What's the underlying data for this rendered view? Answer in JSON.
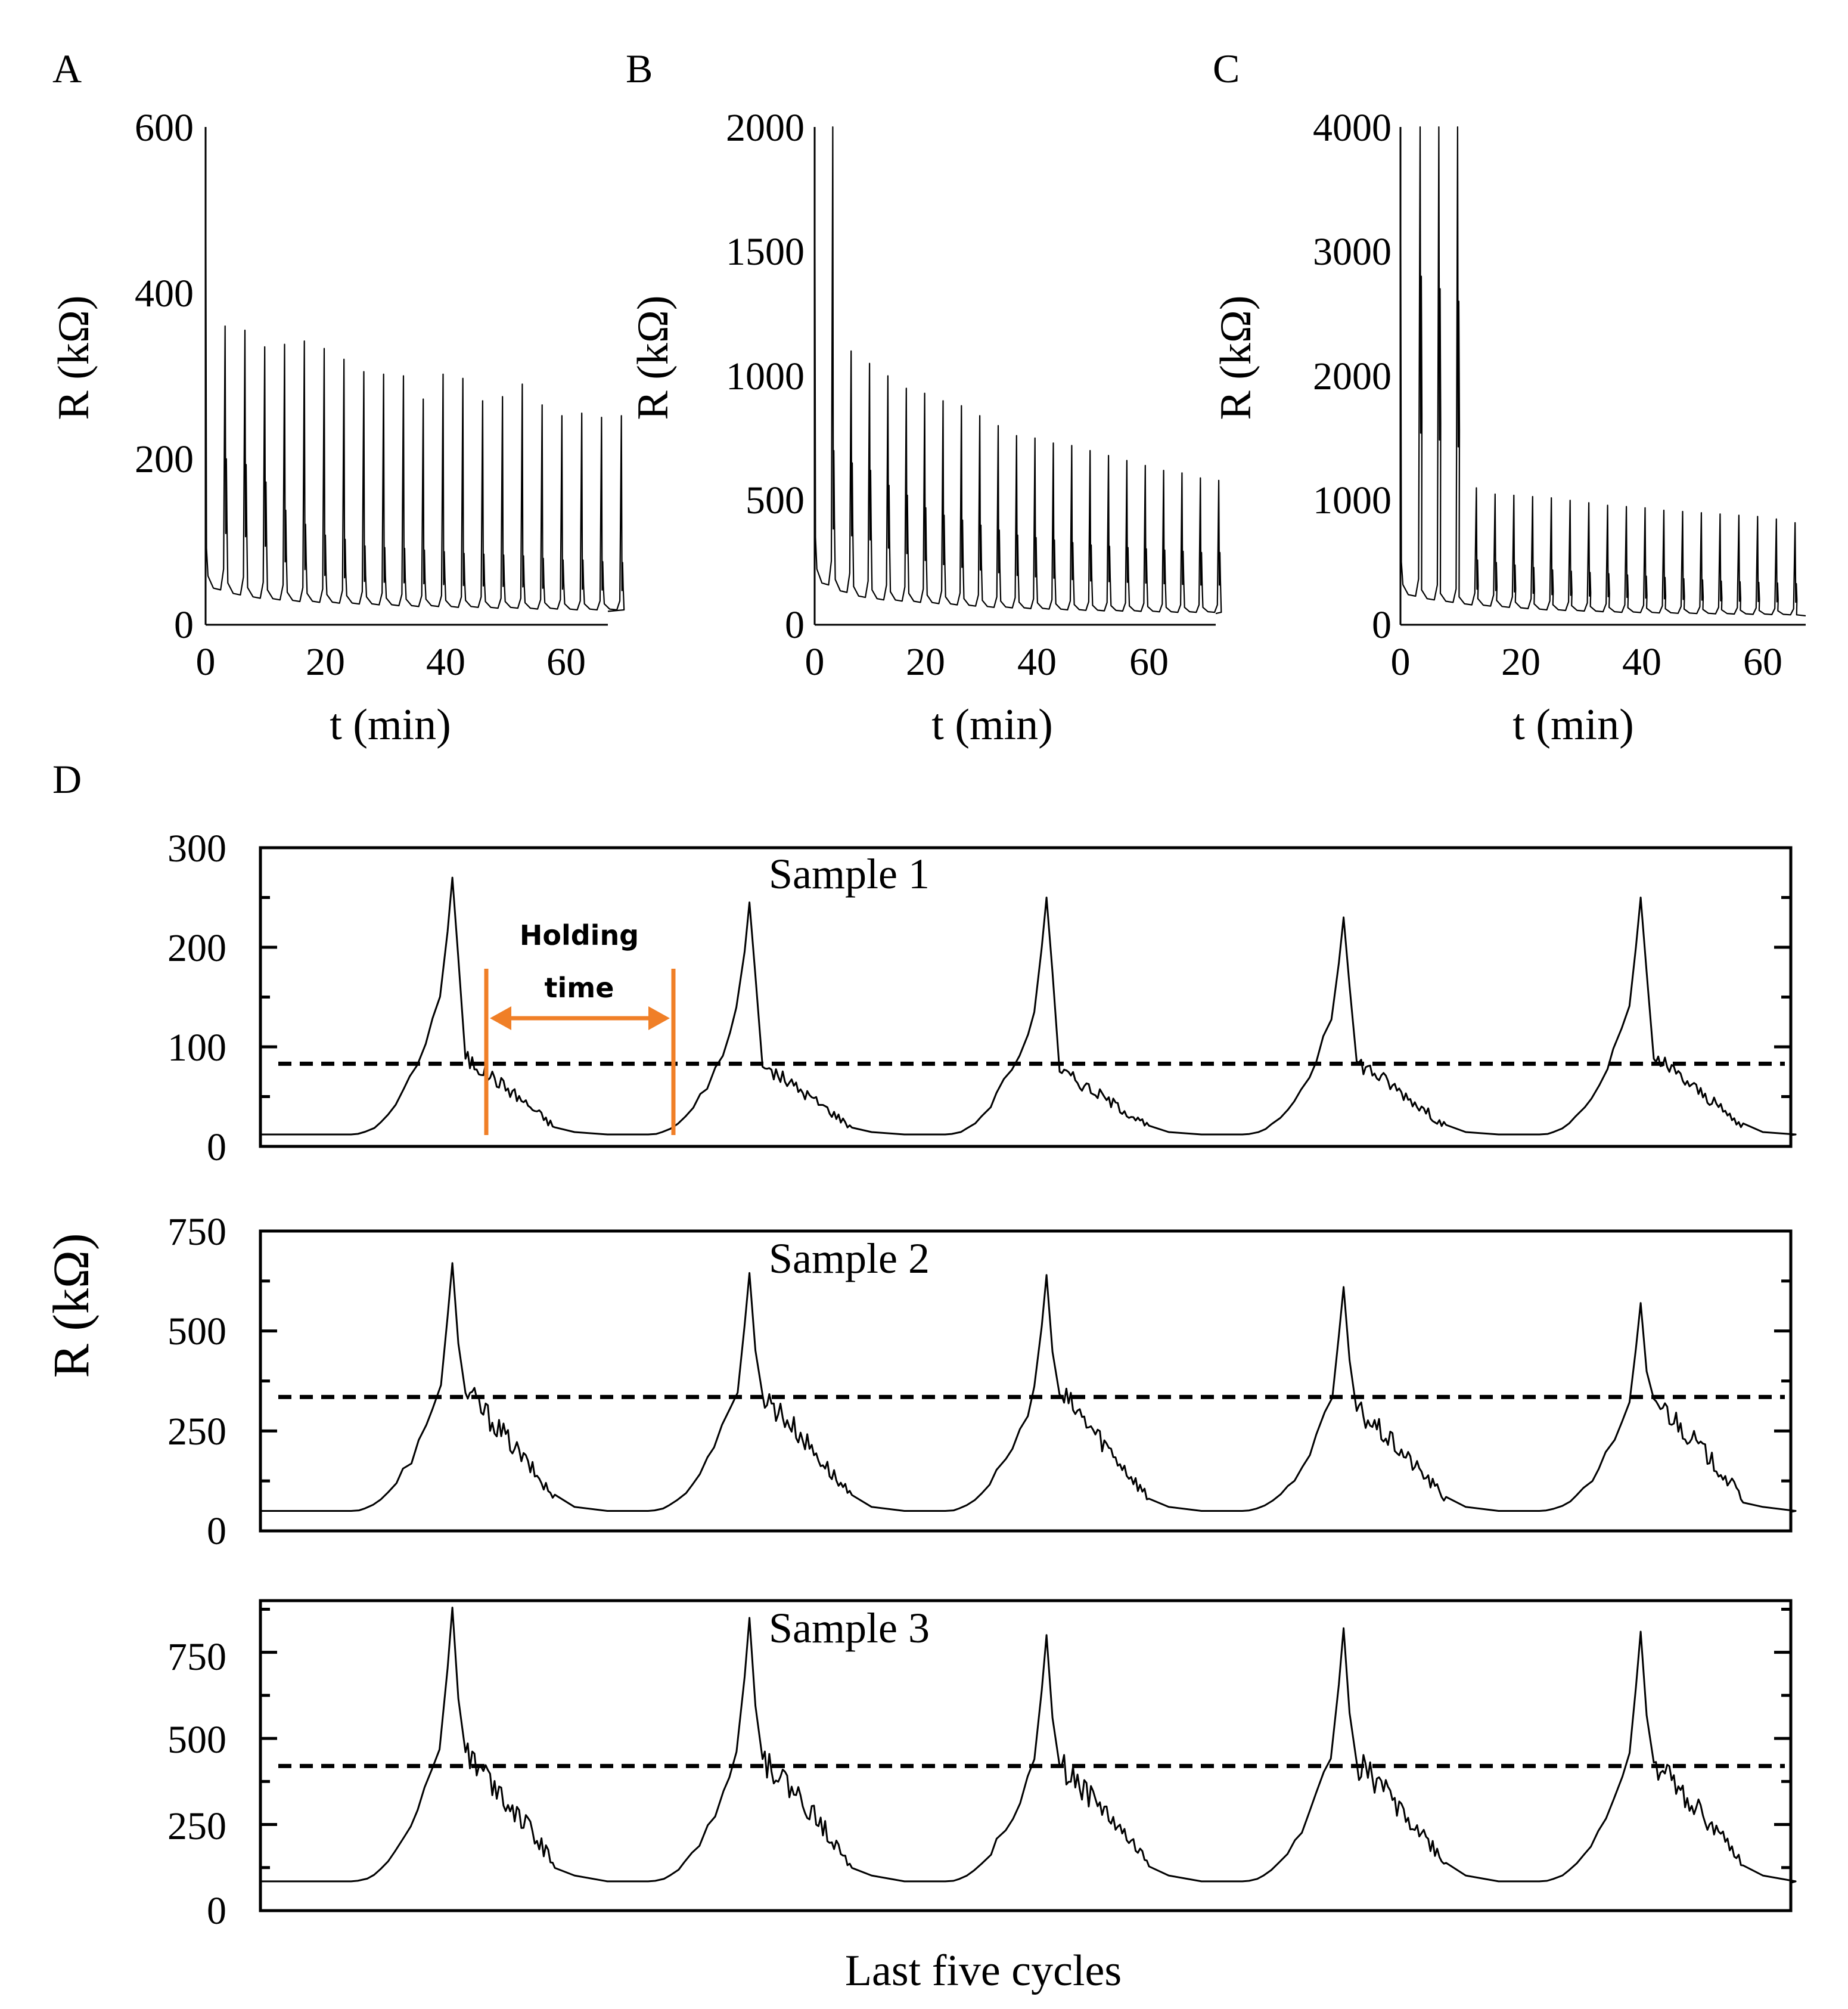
{
  "chart_data": [
    {
      "id": "A",
      "type": "line",
      "panel_label": "A",
      "xlabel": "t (min)",
      "ylabel": "R (kΩ)",
      "xlim": [
        0,
        67
      ],
      "ylim": [
        0,
        600
      ],
      "xticks": [
        "0",
        "20",
        "40",
        "60"
      ],
      "xtick_values": [
        0,
        20,
        40,
        60
      ],
      "yticks": [
        "0",
        "200",
        "400",
        "600"
      ],
      "ytick_values": [
        0,
        200,
        400,
        600
      ],
      "cycle_period_min": 3.3,
      "first_peak": 600,
      "peaks": [
        360,
        355,
        335,
        338,
        342,
        333,
        320,
        305,
        302,
        300,
        272,
        302,
        297,
        270,
        275,
        290,
        265,
        252,
        255,
        250,
        252
      ],
      "secondary_peaks": [
        200,
        193,
        172,
        138,
        121,
        108,
        103,
        95,
        93,
        92,
        90,
        88,
        86,
        85,
        84,
        83,
        80,
        78,
        78,
        76,
        75
      ],
      "valleys": [
        42,
        36,
        32,
        30,
        28,
        27,
        26,
        25,
        24,
        23,
        22,
        22,
        21,
        21,
        20,
        20,
        19,
        19,
        18,
        18,
        18
      ]
    },
    {
      "id": "B",
      "type": "line",
      "panel_label": "B",
      "xlabel": "t (min)",
      "ylabel": "R (kΩ)",
      "xlim": [
        0,
        72
      ],
      "ylim": [
        0,
        2000
      ],
      "xticks": [
        "0",
        "20",
        "40",
        "60"
      ],
      "xtick_values": [
        0,
        20,
        40,
        60
      ],
      "yticks": [
        "0",
        "500",
        "1000",
        "1500",
        "2000"
      ],
      "ytick_values": [
        0,
        500,
        1000,
        1500,
        2000
      ],
      "cycle_period_min": 3.3,
      "first_peak": 2000,
      "peaks": [
        2000,
        1100,
        1050,
        1000,
        950,
        930,
        900,
        880,
        840,
        800,
        760,
        750,
        730,
        720,
        700,
        680,
        660,
        640,
        620,
        610,
        590,
        580
      ],
      "secondary_peaks": [
        700,
        650,
        620,
        560,
        520,
        470,
        440,
        420,
        400,
        380,
        360,
        350,
        340,
        330,
        320,
        315,
        310,
        305,
        300,
        295,
        290,
        290
      ],
      "valleys": [
        160,
        130,
        110,
        100,
        95,
        90,
        85,
        80,
        75,
        70,
        68,
        65,
        63,
        60,
        58,
        56,
        55,
        54,
        52,
        50,
        50,
        50
      ]
    },
    {
      "id": "C",
      "type": "line",
      "panel_label": "C",
      "xlabel": "t (min)",
      "ylabel": "R (kΩ)",
      "xlim": [
        0,
        67
      ],
      "ylim": [
        0,
        4000
      ],
      "xticks": [
        "0",
        "20",
        "40",
        "60"
      ],
      "xtick_values": [
        0,
        20,
        40,
        60
      ],
      "yticks": [
        "0",
        "1000",
        "2000",
        "3000",
        "4000"
      ],
      "ytick_values": [
        0,
        1000,
        2000,
        3000,
        4000
      ],
      "cycle_period_min": 3.1,
      "first_peak": 4000,
      "peaks": [
        4000,
        4000,
        4000,
        1100,
        1050,
        1040,
        1030,
        1020,
        1000,
        980,
        960,
        950,
        940,
        920,
        910,
        900,
        890,
        880,
        870,
        850,
        820
      ],
      "secondary_peaks": [
        2800,
        2700,
        2600,
        520,
        500,
        480,
        460,
        440,
        430,
        420,
        410,
        400,
        390,
        380,
        370,
        360,
        350,
        345,
        340,
        335,
        330
      ],
      "valleys": [
        230,
        200,
        180,
        160,
        150,
        140,
        130,
        120,
        115,
        110,
        105,
        100,
        98,
        95,
        92,
        90,
        88,
        86,
        84,
        82,
        80
      ]
    },
    {
      "id": "D1",
      "type": "line",
      "panel_label": "D",
      "title": "Sample 1",
      "ylim": [
        0,
        300
      ],
      "yticks": [
        "0",
        "100",
        "200",
        "300"
      ],
      "ytick_values": [
        0,
        100,
        200,
        300
      ],
      "threshold": 83,
      "baseline": 12,
      "cycle_peaks": [
        270,
        245,
        250,
        230,
        250
      ],
      "cycle_shoulders": [
        88,
        80,
        75,
        85,
        88
      ],
      "annotation": [
        "Holding",
        "time"
      ]
    },
    {
      "id": "D2",
      "type": "line",
      "title": "Sample 2",
      "ylim": [
        0,
        750
      ],
      "yticks": [
        "0",
        "250",
        "500",
        "750"
      ],
      "ytick_values": [
        0,
        250,
        500,
        750
      ],
      "threshold": 335,
      "baseline": 50,
      "cycle_peaks": [
        670,
        645,
        640,
        610,
        570
      ],
      "cycle_shoulders": [
        345,
        340,
        340,
        300,
        330
      ]
    },
    {
      "id": "D3",
      "type": "line",
      "title": "Sample 3",
      "ylim": [
        0,
        900
      ],
      "yticks": [
        "0",
        "250",
        "500",
        "750"
      ],
      "ytick_values": [
        0,
        250,
        500,
        750
      ],
      "threshold": 420,
      "baseline": 85,
      "cycle_peaks": [
        880,
        850,
        800,
        820,
        810
      ],
      "cycle_shoulders": [
        460,
        440,
        420,
        430,
        430
      ]
    }
  ],
  "shared": {
    "panel_d_label": "D",
    "ylabel": "R (kΩ)",
    "xlabel": "Last five cycles",
    "annotation_color": "#F07F27"
  }
}
